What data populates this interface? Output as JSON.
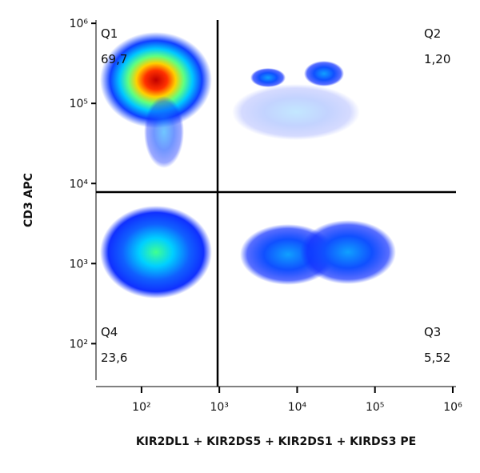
{
  "chart_data": {
    "type": "quadrant-scatter",
    "x_label": "KIR2DL1 + KIR2DS5 + KIR2DS1 + KIRDS3 PE",
    "y_label": "CD3 APC",
    "log_x": true,
    "log_y": true,
    "xlim": [
      26,
      1100000
    ],
    "ylim": [
      35,
      1100000
    ],
    "xticks": [
      {
        "value": 100,
        "label": "10²"
      },
      {
        "value": 1000,
        "label": "10³"
      },
      {
        "value": 10000,
        "label": "10⁴"
      },
      {
        "value": 100000,
        "label": "10⁵"
      },
      {
        "value": 1000000,
        "label": "10⁶"
      }
    ],
    "yticks": [
      {
        "value": 100,
        "label": "10²"
      },
      {
        "value": 1000,
        "label": "10³"
      },
      {
        "value": 10000,
        "label": "10⁴"
      },
      {
        "value": 100000,
        "label": "10⁵"
      },
      {
        "value": 1000000,
        "label": "10⁶"
      }
    ],
    "gate_x": 950,
    "gate_y": 7800,
    "quadrants": [
      {
        "name": "Q1",
        "value": 69.7,
        "value_label": "69,7"
      },
      {
        "name": "Q2",
        "value": 1.2,
        "value_label": "1,20"
      },
      {
        "name": "Q3",
        "value": 5.52,
        "value_label": "5,52"
      },
      {
        "name": "Q4",
        "value": 23.6,
        "value_label": "23,6"
      }
    ]
  }
}
